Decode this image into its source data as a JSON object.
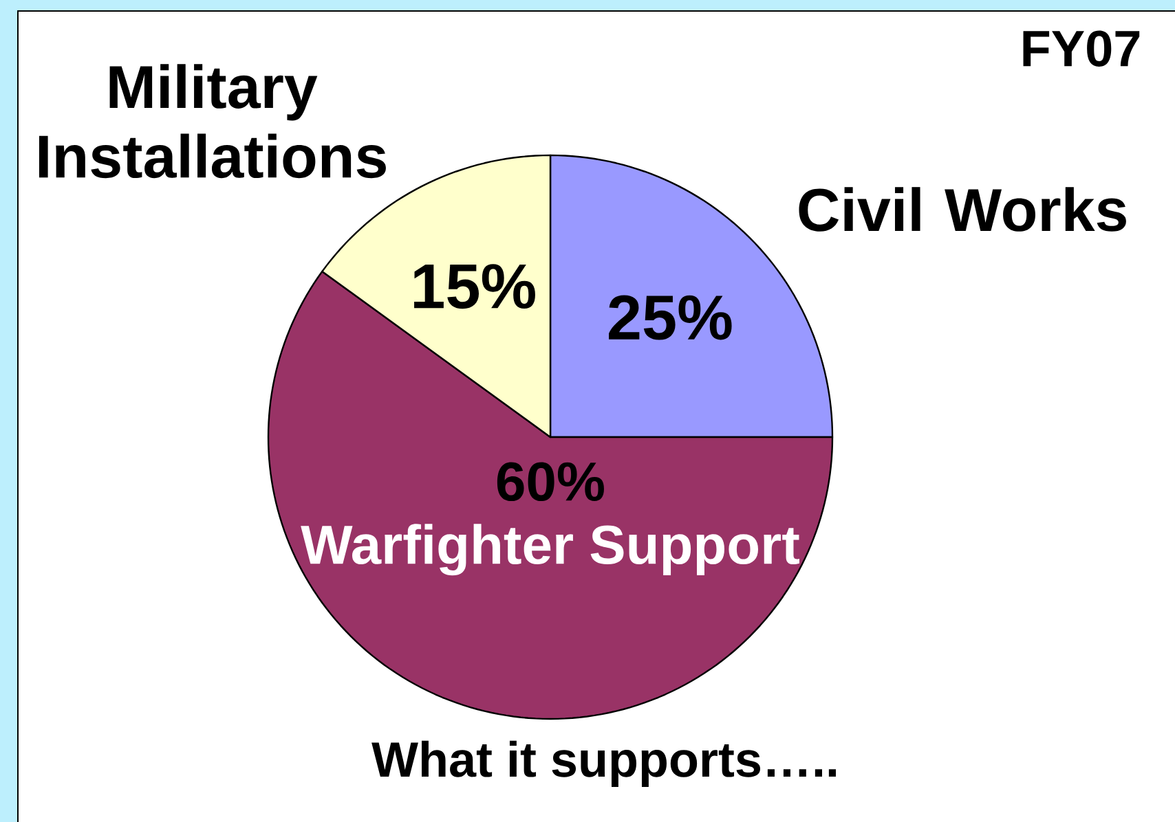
{
  "chart_data": {
    "type": "pie",
    "title": "FY07",
    "categories": [
      "Civil Works",
      "Warfighter Support",
      "Military Installations"
    ],
    "values": [
      25,
      60,
      15
    ],
    "value_labels": [
      "25%",
      "60%",
      "15%"
    ],
    "colors": [
      "#9999ff",
      "#993366",
      "#ffffcc"
    ],
    "annotations": [
      "What it supports….."
    ]
  }
}
